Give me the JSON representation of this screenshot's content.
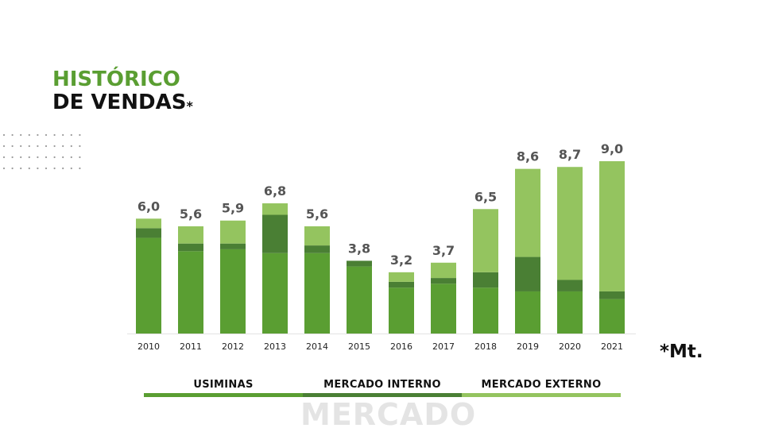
{
  "title": {
    "line1": "HISTÓRICO",
    "line2": "DE VENDAS",
    "asterisk": "*"
  },
  "unit_note": "*Mt.",
  "watermark": "MERCADO",
  "colors": {
    "usiminas": "#5a9e32",
    "mercado_interno": "#4a7f34",
    "mercado_externo": "#94c45f"
  },
  "legend": [
    {
      "label": "USIMINAS",
      "color": "#5a9e32"
    },
    {
      "label": "MERCADO INTERNO",
      "color": "#4a7f34"
    },
    {
      "label": "MERCADO EXTERNO",
      "color": "#94c45f"
    }
  ],
  "chart_data": {
    "type": "bar",
    "stacked": true,
    "categories": [
      "2010",
      "2011",
      "2012",
      "2013",
      "2014",
      "2015",
      "2016",
      "2017",
      "2018",
      "2019",
      "2020",
      "2021"
    ],
    "totals": [
      "6,0",
      "5,6",
      "5,9",
      "6,8",
      "5,6",
      "3,8",
      "3,2",
      "3,7",
      "6,5",
      "8,6",
      "8,7",
      "9,0"
    ],
    "series": [
      {
        "name": "USIMINAS",
        "values": [
          5.0,
          4.3,
          4.4,
          4.2,
          4.2,
          3.5,
          2.4,
          2.6,
          2.4,
          2.2,
          2.2,
          1.8
        ]
      },
      {
        "name": "MERCADO INTERNO",
        "values": [
          0.5,
          0.4,
          0.3,
          2.0,
          0.4,
          0.3,
          0.3,
          0.3,
          0.8,
          1.8,
          0.6,
          0.4
        ]
      },
      {
        "name": "MERCADO EXTERNO",
        "values": [
          0.5,
          0.9,
          1.2,
          0.6,
          1.0,
          0.0,
          0.5,
          0.8,
          3.3,
          4.6,
          5.9,
          6.8
        ]
      }
    ],
    "ylim": [
      0,
      9.0
    ],
    "grid": false
  }
}
